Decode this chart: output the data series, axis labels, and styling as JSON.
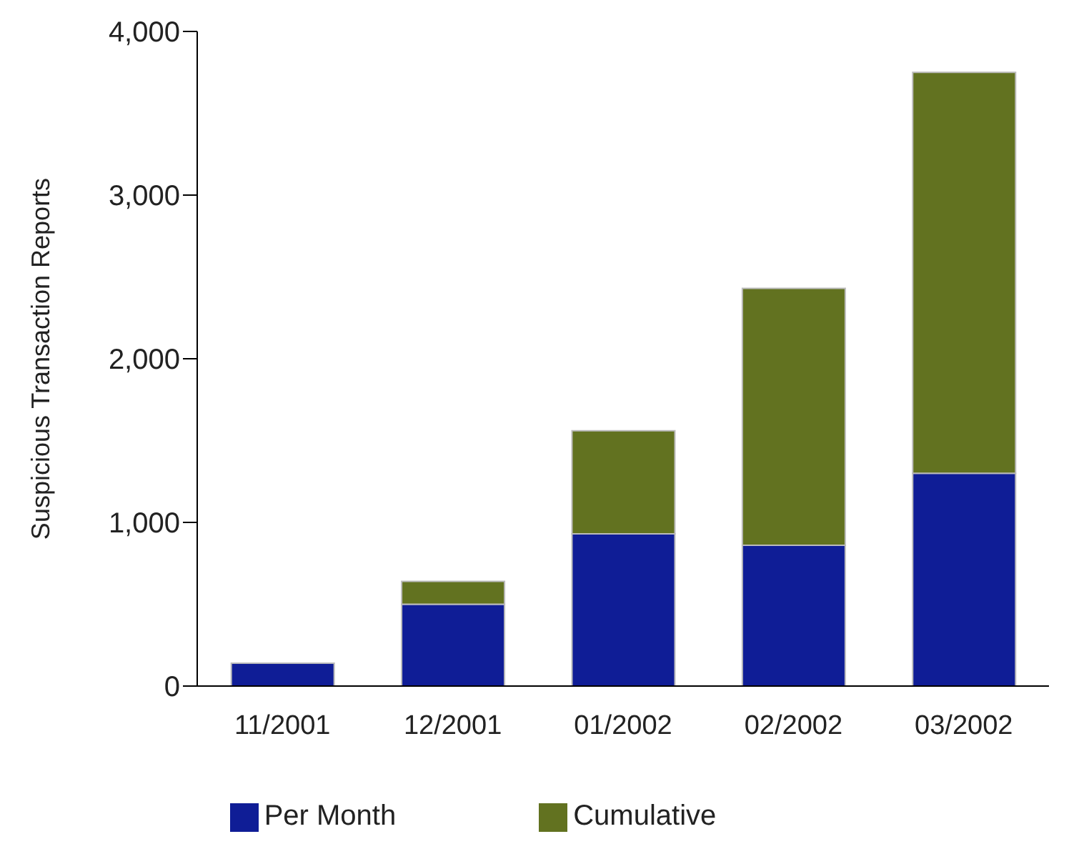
{
  "chart_data": {
    "type": "bar",
    "ylabel": "Suspicious Transaction Reports",
    "categories": [
      "11/2001",
      "12/2001",
      "01/2002",
      "02/2002",
      "03/2002"
    ],
    "series": [
      {
        "name": "Per Month",
        "color": "#0f1d96",
        "values": [
          140,
          500,
          930,
          860,
          1300
        ]
      },
      {
        "name": "Cumulative",
        "color": "#627220",
        "values": [
          null,
          140,
          630,
          1570,
          2450
        ]
      }
    ],
    "stacked": true,
    "ylim": [
      0,
      4000
    ],
    "yticks": [
      {
        "value": 0,
        "label": "0"
      },
      {
        "value": 1000,
        "label": "1,000"
      },
      {
        "value": 2000,
        "label": "2,000"
      },
      {
        "value": 3000,
        "label": "3,000"
      },
      {
        "value": 4000,
        "label": "4,000"
      }
    ],
    "grid": false,
    "legend": "bottom"
  }
}
